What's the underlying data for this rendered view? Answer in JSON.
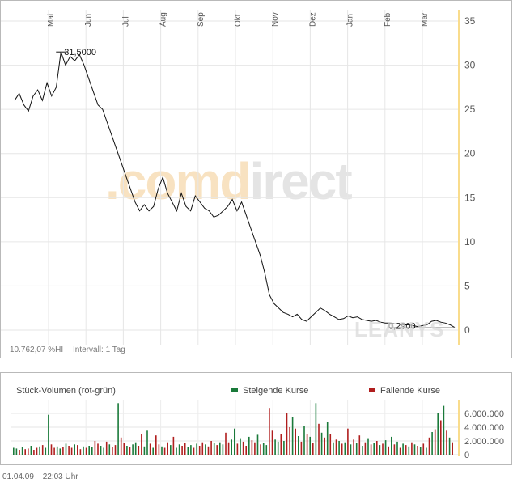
{
  "chart_data": [
    {
      "type": "line",
      "x_tick_labels": [
        "Mai",
        "Jun",
        "Jul",
        "Aug",
        "Sep",
        "Okt",
        "Nov",
        "Dez",
        "Jan",
        "Feb",
        "Mär"
      ],
      "y_ticks": [
        0,
        5,
        10,
        15,
        20,
        25,
        30,
        35
      ],
      "ylim": [
        0,
        35
      ],
      "grid": true,
      "y_axis_side": "right",
      "series": [
        {
          "values": [
            26.0,
            26.8,
            25.5,
            24.8,
            26.5,
            27.2,
            26.0,
            28.0,
            26.5,
            27.5,
            31.5,
            30.0,
            31.0,
            30.5,
            31.2,
            30.0,
            28.5,
            27.0,
            25.5,
            25.0,
            23.5,
            22.0,
            20.5,
            19.0,
            17.5,
            16.0,
            14.5,
            13.5,
            14.2,
            13.5,
            14.0,
            16.0,
            17.3,
            15.5,
            14.5,
            13.5,
            15.5,
            14.0,
            13.5,
            15.2,
            14.5,
            13.8,
            13.5,
            12.8,
            13.0,
            13.5,
            14.0,
            14.8,
            13.5,
            14.5,
            13.0,
            11.5,
            10.0,
            8.5,
            6.5,
            4.0,
            3.0,
            2.5,
            2.0,
            1.8,
            1.5,
            1.8,
            1.2,
            1.0,
            1.5,
            2.0,
            2.5,
            2.2,
            1.8,
            1.5,
            1.2,
            1.3,
            1.6,
            1.4,
            1.5,
            1.2,
            1.1,
            1.0,
            1.1,
            0.9,
            0.8,
            0.8,
            0.7,
            0.7,
            0.6,
            0.6,
            0.5,
            0.4,
            0.5,
            0.6,
            1.0,
            1.1,
            0.9,
            0.8,
            0.6,
            0.3
          ]
        }
      ],
      "annotations": [
        "31,5000",
        "0,2900"
      ],
      "watermark": ".comdirect",
      "footnote": "10.762,07 %HI",
      "interval_label": "Intervall: 1 Tag"
    },
    {
      "type": "bar",
      "title": "Stück-Volumen (rot-grün)",
      "y_ticks": [
        0,
        2000000,
        4000000,
        6000000
      ],
      "y_tick_labels": [
        "0",
        "2.000.000",
        "4.000.000",
        "6.000.000"
      ],
      "ylim": [
        0,
        8000000
      ],
      "legend": [
        {
          "name": "Steigende Kurse",
          "color": "#1a7a3a"
        },
        {
          "name": "Fallende Kurse",
          "color": "#b01e1e"
        }
      ],
      "values": [
        1000000,
        900000,
        700000,
        1100000,
        800000,
        900000,
        1300000,
        700000,
        1000000,
        1200000,
        1400000,
        1000000,
        5800000,
        1500000,
        1000000,
        1200000,
        900000,
        1100000,
        1600000,
        1300000,
        1000000,
        1500000,
        1400000,
        800000,
        1200000,
        1000000,
        1300000,
        1100000,
        2000000,
        1600000,
        1300000,
        1000000,
        1900000,
        1500000,
        1100000,
        1400000,
        7500000,
        2500000,
        1700000,
        1300000,
        1100000,
        1500000,
        1800000,
        1300000,
        3000000,
        1200000,
        3500000,
        1600000,
        1000000,
        2800000,
        1500000,
        1200000,
        1000000,
        1800000,
        1400000,
        2600000,
        1000000,
        1500000,
        1300000,
        1700000,
        1100000,
        1400000,
        1000000,
        1600000,
        1300000,
        1800000,
        1500000,
        1200000,
        2000000,
        1700000,
        1400000,
        1800000,
        1500000,
        3200000,
        1800000,
        2200000,
        3800000,
        1600000,
        2400000,
        1900000,
        1300000,
        2600000,
        2100000,
        1800000,
        2900000,
        1500000,
        1700000,
        1400000,
        6800000,
        3500000,
        2200000,
        1900000,
        3000000,
        2000000,
        6000000,
        4000000,
        5500000,
        3800000,
        2700000,
        1900000,
        4200000,
        3000000,
        2600000,
        1700000,
        7500000,
        4500000,
        3200000,
        2500000,
        4700000,
        3000000,
        1800000,
        2200000,
        2000000,
        1600000,
        1800000,
        3800000,
        1500000,
        2200000,
        1700000,
        2800000,
        1300000,
        1800000,
        2400000,
        1500000,
        1700000,
        2000000,
        1400000,
        1600000,
        2100000,
        1200000,
        2600000,
        1500000,
        1900000,
        1000000,
        1600000,
        1400000,
        1200000,
        1800000,
        1500000,
        1300000,
        1100000,
        1600000,
        1000000,
        2500000,
        3300000,
        3700000,
        6000000,
        5000000,
        7100000,
        3500000,
        2500000,
        1800000
      ]
    }
  ],
  "footer": {
    "date": "01.04.09",
    "time": "22:03 Uhr"
  }
}
